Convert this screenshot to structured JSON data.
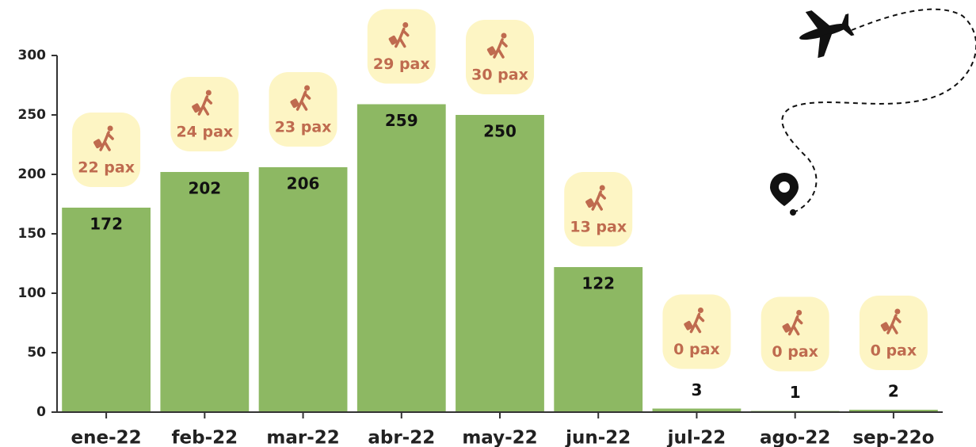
{
  "chart_data": {
    "type": "bar",
    "categories": [
      "ene-22",
      "feb-22",
      "mar-22",
      "abr-22",
      "may-22",
      "jun-22",
      "jul-22",
      "ago-22",
      "sep-22o"
    ],
    "values": [
      172,
      202,
      206,
      259,
      250,
      122,
      3,
      1,
      2
    ],
    "pax_labels": [
      "22 pax",
      "24 pax",
      "23 pax",
      "29 pax",
      "30 pax",
      "13 pax",
      "0 pax",
      "0 pax",
      "0 pax"
    ],
    "color": "#8db863",
    "ylim": [
      0,
      300
    ],
    "yticks": [
      0,
      50,
      100,
      150,
      200,
      250,
      300
    ]
  }
}
